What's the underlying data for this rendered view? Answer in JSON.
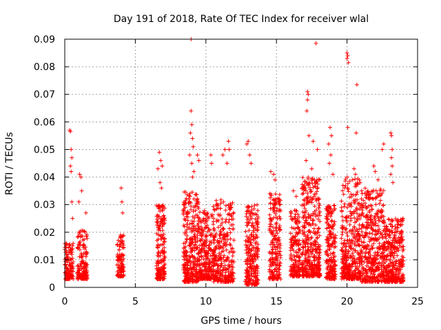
{
  "chart_data": {
    "type": "scatter",
    "title": "Day 191 of 2018, Rate Of TEC Index for receiver wlal",
    "xlabel": "GPS time / hours",
    "ylabel": "ROTI / TECUs",
    "xlim": [
      0,
      25
    ],
    "ylim": [
      0,
      0.09
    ],
    "grid": true,
    "marker": "+",
    "color": "#ff0000",
    "x_ticks": [
      0,
      5,
      10,
      15,
      20,
      25
    ],
    "x_tick_labels": [
      "0",
      "5",
      "10",
      "15",
      "20",
      "25"
    ],
    "y_ticks": [
      0,
      0.01,
      0.02,
      0.03,
      0.04,
      0.05,
      0.06,
      0.07,
      0.08,
      0.09
    ],
    "y_tick_labels": [
      "0",
      "0.01",
      "0.02",
      "0.03",
      "0.04",
      "0.05",
      "0.06",
      "0.07",
      "0.08",
      "0.09"
    ],
    "clusters": [
      {
        "x_range": [
          0.0,
          0.6
        ],
        "y_range": [
          0.003,
          0.016
        ],
        "count": 120
      },
      {
        "x_range": [
          0.9,
          1.6
        ],
        "y_range": [
          0.003,
          0.021
        ],
        "count": 170
      },
      {
        "x_range": [
          3.7,
          4.2
        ],
        "y_range": [
          0.004,
          0.019
        ],
        "count": 100
      },
      {
        "x_range": [
          6.5,
          7.1
        ],
        "y_range": [
          0.003,
          0.03
        ],
        "count": 200
      },
      {
        "x_range": [
          8.4,
          9.5
        ],
        "y_range": [
          0.002,
          0.035
        ],
        "count": 320
      },
      {
        "x_range": [
          9.5,
          10.6
        ],
        "y_range": [
          0.003,
          0.028
        ],
        "count": 260
      },
      {
        "x_range": [
          10.5,
          12.0
        ],
        "y_range": [
          0.002,
          0.032
        ],
        "count": 300
      },
      {
        "x_range": [
          12.8,
          13.7
        ],
        "y_range": [
          0.001,
          0.03
        ],
        "count": 260
      },
      {
        "x_range": [
          14.5,
          15.3
        ],
        "y_range": [
          0.003,
          0.034
        ],
        "count": 220
      },
      {
        "x_range": [
          16.0,
          16.7
        ],
        "y_range": [
          0.004,
          0.028
        ],
        "count": 180
      },
      {
        "x_range": [
          16.8,
          18.1
        ],
        "y_range": [
          0.004,
          0.04
        ],
        "count": 400
      },
      {
        "x_range": [
          18.5,
          19.2
        ],
        "y_range": [
          0.003,
          0.03
        ],
        "count": 200
      },
      {
        "x_range": [
          19.6,
          21.0
        ],
        "y_range": [
          0.003,
          0.04
        ],
        "count": 380
      },
      {
        "x_range": [
          21.0,
          22.6
        ],
        "y_range": [
          0.002,
          0.036
        ],
        "count": 420
      },
      {
        "x_range": [
          22.6,
          24.0
        ],
        "y_range": [
          0.002,
          0.025
        ],
        "count": 360
      }
    ],
    "outliers": [
      {
        "x": 0.35,
        "y": 0.057
      },
      {
        "x": 0.4,
        "y": 0.0565
      },
      {
        "x": 0.45,
        "y": 0.05
      },
      {
        "x": 0.5,
        "y": 0.047
      },
      {
        "x": 0.4,
        "y": 0.044
      },
      {
        "x": 0.45,
        "y": 0.042
      },
      {
        "x": 0.5,
        "y": 0.031
      },
      {
        "x": 0.55,
        "y": 0.025
      },
      {
        "x": 1.05,
        "y": 0.041
      },
      {
        "x": 1.15,
        "y": 0.04
      },
      {
        "x": 1.2,
        "y": 0.035
      },
      {
        "x": 1.0,
        "y": 0.031
      },
      {
        "x": 1.5,
        "y": 0.027
      },
      {
        "x": 4.0,
        "y": 0.036
      },
      {
        "x": 4.05,
        "y": 0.031
      },
      {
        "x": 4.1,
        "y": 0.027
      },
      {
        "x": 6.7,
        "y": 0.049
      },
      {
        "x": 6.8,
        "y": 0.046
      },
      {
        "x": 6.6,
        "y": 0.043
      },
      {
        "x": 6.9,
        "y": 0.044
      },
      {
        "x": 6.75,
        "y": 0.038
      },
      {
        "x": 6.85,
        "y": 0.036
      },
      {
        "x": 8.95,
        "y": 0.09
      },
      {
        "x": 8.95,
        "y": 0.064
      },
      {
        "x": 9.0,
        "y": 0.059
      },
      {
        "x": 8.9,
        "y": 0.056
      },
      {
        "x": 9.05,
        "y": 0.054
      },
      {
        "x": 9.1,
        "y": 0.051
      },
      {
        "x": 8.85,
        "y": 0.048
      },
      {
        "x": 9.0,
        "y": 0.045
      },
      {
        "x": 9.15,
        "y": 0.042
      },
      {
        "x": 9.05,
        "y": 0.04
      },
      {
        "x": 9.4,
        "y": 0.048
      },
      {
        "x": 9.5,
        "y": 0.046
      },
      {
        "x": 10.35,
        "y": 0.048
      },
      {
        "x": 10.4,
        "y": 0.045
      },
      {
        "x": 11.35,
        "y": 0.05
      },
      {
        "x": 11.2,
        "y": 0.048
      },
      {
        "x": 11.6,
        "y": 0.053
      },
      {
        "x": 11.65,
        "y": 0.05
      },
      {
        "x": 11.5,
        "y": 0.045
      },
      {
        "x": 12.9,
        "y": 0.052
      },
      {
        "x": 13.0,
        "y": 0.053
      },
      {
        "x": 13.1,
        "y": 0.048
      },
      {
        "x": 13.2,
        "y": 0.045
      },
      {
        "x": 14.6,
        "y": 0.042
      },
      {
        "x": 14.8,
        "y": 0.041
      },
      {
        "x": 14.9,
        "y": 0.039
      },
      {
        "x": 16.2,
        "y": 0.035
      },
      {
        "x": 16.4,
        "y": 0.033
      },
      {
        "x": 17.2,
        "y": 0.071
      },
      {
        "x": 17.25,
        "y": 0.07
      },
      {
        "x": 17.2,
        "y": 0.068
      },
      {
        "x": 17.15,
        "y": 0.064
      },
      {
        "x": 17.8,
        "y": 0.0885
      },
      {
        "x": 17.3,
        "y": 0.055
      },
      {
        "x": 17.6,
        "y": 0.053
      },
      {
        "x": 17.9,
        "y": 0.05
      },
      {
        "x": 17.1,
        "y": 0.046
      },
      {
        "x": 17.5,
        "y": 0.043
      },
      {
        "x": 18.8,
        "y": 0.058
      },
      {
        "x": 18.9,
        "y": 0.055
      },
      {
        "x": 18.7,
        "y": 0.052
      },
      {
        "x": 18.85,
        "y": 0.048
      },
      {
        "x": 18.75,
        "y": 0.045
      },
      {
        "x": 19.0,
        "y": 0.041
      },
      {
        "x": 20.0,
        "y": 0.085
      },
      {
        "x": 20.05,
        "y": 0.084
      },
      {
        "x": 20.0,
        "y": 0.083
      },
      {
        "x": 20.1,
        "y": 0.0815
      },
      {
        "x": 20.05,
        "y": 0.058
      },
      {
        "x": 20.7,
        "y": 0.0735
      },
      {
        "x": 20.65,
        "y": 0.056
      },
      {
        "x": 20.5,
        "y": 0.043
      },
      {
        "x": 20.6,
        "y": 0.041
      },
      {
        "x": 20.4,
        "y": 0.039
      },
      {
        "x": 21.9,
        "y": 0.044
      },
      {
        "x": 22.0,
        "y": 0.042
      },
      {
        "x": 22.2,
        "y": 0.039
      },
      {
        "x": 22.6,
        "y": 0.052
      },
      {
        "x": 22.5,
        "y": 0.05
      },
      {
        "x": 23.1,
        "y": 0.056
      },
      {
        "x": 23.15,
        "y": 0.055
      },
      {
        "x": 23.2,
        "y": 0.05
      },
      {
        "x": 23.15,
        "y": 0.047
      },
      {
        "x": 23.2,
        "y": 0.044
      },
      {
        "x": 23.1,
        "y": 0.041
      },
      {
        "x": 23.25,
        "y": 0.038
      }
    ]
  }
}
